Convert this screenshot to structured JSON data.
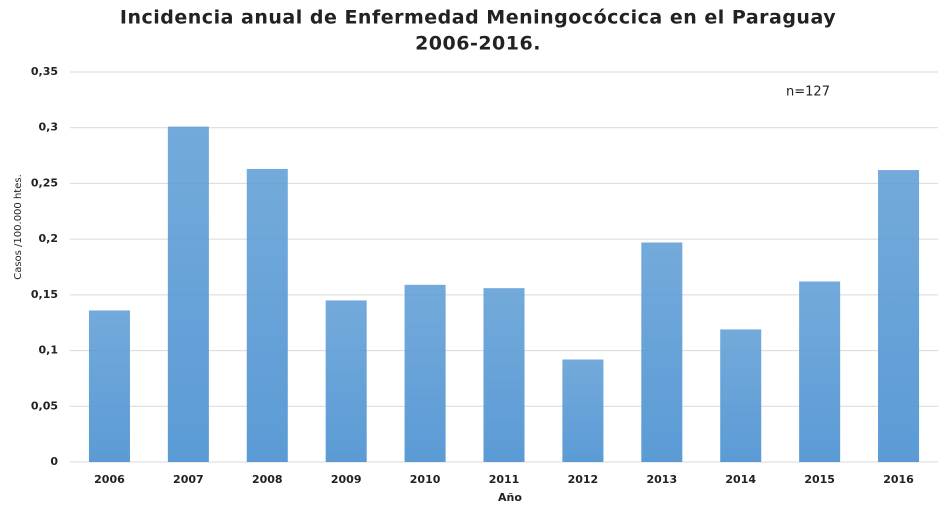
{
  "chart_data": {
    "type": "bar",
    "title": [
      "Incidencia anual de Enfermedad Meningocóccica en el Paraguay",
      "2006-2016."
    ],
    "annotation": "n=127",
    "x_label": "Año",
    "y_label": "Casos /100.000 htes.",
    "categories": [
      "2006",
      "2007",
      "2008",
      "2009",
      "2010",
      "2011",
      "2012",
      "2013",
      "2014",
      "2015",
      "2016"
    ],
    "values": [
      0.136,
      0.301,
      0.263,
      0.145,
      0.159,
      0.156,
      0.092,
      0.197,
      0.119,
      0.162,
      0.262
    ],
    "color": "#5b9bd5",
    "ylim": [
      0,
      0.35
    ],
    "yticks": [
      0,
      {
        "value": 0.05,
        "label": "0,05"
      },
      {
        "value": 0.1,
        "label": "0,1"
      },
      {
        "value": 0.15,
        "label": "0,15"
      },
      {
        "value": 0.2,
        "label": "0,2"
      },
      {
        "value": 0.25,
        "label": "0,25"
      },
      {
        "value": 0.3,
        "label": "0,3"
      },
      {
        "value": 0.35,
        "label": "0,35"
      }
    ],
    "grid": true
  }
}
